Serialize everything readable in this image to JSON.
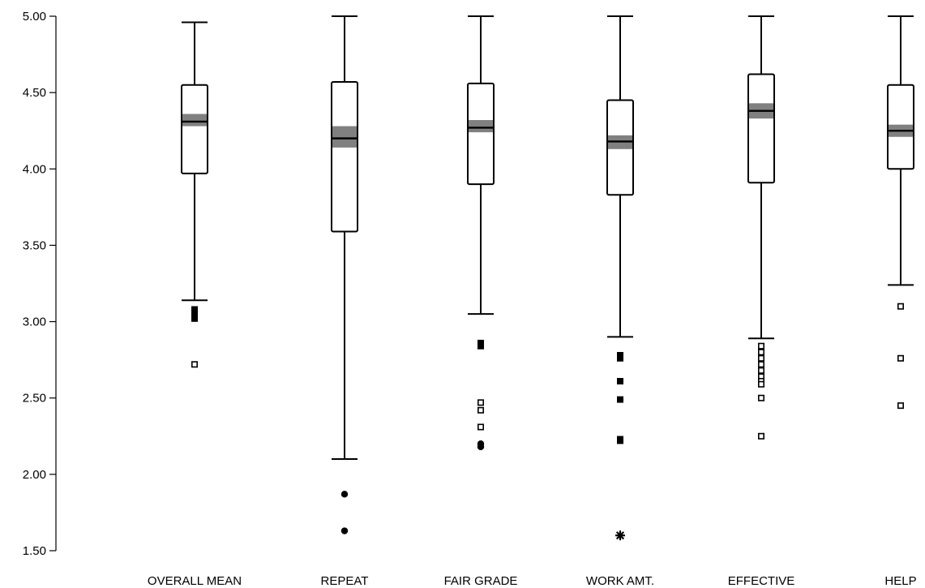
{
  "chart_data": {
    "type": "box",
    "title": "",
    "xlabel": "",
    "ylabel": "",
    "ylim": [
      1.5,
      5.0
    ],
    "yticks": [
      "1.50",
      "2.00",
      "2.50",
      "3.00",
      "3.50",
      "4.00",
      "4.50",
      "5.00"
    ],
    "grid": false,
    "legend": "none",
    "colors": {
      "box_fill": "#ffffff",
      "stroke": "#000000",
      "ci_band": "#808080"
    },
    "categories": [
      "OVERALL MEAN",
      "REPEAT",
      "FAIR GRADE",
      "WORK AMT.",
      "EFFECTIVE",
      "HELP"
    ],
    "boxes": [
      {
        "label": "OVERALL MEAN",
        "whisker_low": 3.14,
        "q1": 3.97,
        "median": 4.31,
        "q3": 4.55,
        "whisker_high": 4.96,
        "ci_low": 4.28,
        "ci_high": 4.36,
        "outliers": [
          {
            "value": 3.08,
            "symbol": "square"
          },
          {
            "value": 3.06,
            "symbol": "square"
          },
          {
            "value": 3.04,
            "symbol": "square"
          },
          {
            "value": 3.02,
            "symbol": "square"
          },
          {
            "value": 2.72,
            "symbol": "open-square"
          }
        ]
      },
      {
        "label": "REPEAT",
        "whisker_low": 2.1,
        "q1": 3.59,
        "median": 4.2,
        "q3": 4.57,
        "whisker_high": 5.0,
        "ci_low": 4.14,
        "ci_high": 4.28,
        "outliers": [
          {
            "value": 1.87,
            "symbol": "dot"
          },
          {
            "value": 1.63,
            "symbol": "dot"
          }
        ]
      },
      {
        "label": "FAIR GRADE",
        "whisker_low": 3.05,
        "q1": 3.9,
        "median": 4.27,
        "q3": 4.56,
        "whisker_high": 5.0,
        "ci_low": 4.24,
        "ci_high": 4.32,
        "outliers": [
          {
            "value": 2.86,
            "symbol": "square"
          },
          {
            "value": 2.84,
            "symbol": "square"
          },
          {
            "value": 2.47,
            "symbol": "open-square"
          },
          {
            "value": 2.42,
            "symbol": "open-square"
          },
          {
            "value": 2.31,
            "symbol": "open-square"
          },
          {
            "value": 2.2,
            "symbol": "dot"
          },
          {
            "value": 2.18,
            "symbol": "dot"
          }
        ]
      },
      {
        "label": "WORK AMT.",
        "whisker_low": 2.9,
        "q1": 3.83,
        "median": 4.18,
        "q3": 4.45,
        "whisker_high": 5.0,
        "ci_low": 4.13,
        "ci_high": 4.22,
        "outliers": [
          {
            "value": 2.78,
            "symbol": "square"
          },
          {
            "value": 2.76,
            "symbol": "square"
          },
          {
            "value": 2.61,
            "symbol": "square"
          },
          {
            "value": 2.49,
            "symbol": "square"
          },
          {
            "value": 2.23,
            "symbol": "square"
          },
          {
            "value": 2.22,
            "symbol": "square"
          },
          {
            "value": 1.6,
            "symbol": "star"
          }
        ]
      },
      {
        "label": "EFFECTIVE",
        "whisker_low": 2.89,
        "q1": 3.91,
        "median": 4.38,
        "q3": 4.62,
        "whisker_high": 5.0,
        "ci_low": 4.33,
        "ci_high": 4.43,
        "outliers": [
          {
            "value": 2.84,
            "symbol": "open-square"
          },
          {
            "value": 2.8,
            "symbol": "open-square"
          },
          {
            "value": 2.76,
            "symbol": "open-square"
          },
          {
            "value": 2.72,
            "symbol": "open-square"
          },
          {
            "value": 2.68,
            "symbol": "open-square"
          },
          {
            "value": 2.64,
            "symbol": "open-square"
          },
          {
            "value": 2.61,
            "symbol": "open-square"
          },
          {
            "value": 2.59,
            "symbol": "open-square"
          },
          {
            "value": 2.5,
            "symbol": "open-square"
          },
          {
            "value": 2.25,
            "symbol": "open-square"
          }
        ]
      },
      {
        "label": "HELP",
        "whisker_low": 3.24,
        "q1": 4.0,
        "median": 4.25,
        "q3": 4.55,
        "whisker_high": 5.0,
        "ci_low": 4.21,
        "ci_high": 4.29,
        "outliers": [
          {
            "value": 3.1,
            "symbol": "open-square"
          },
          {
            "value": 2.76,
            "symbol": "open-square"
          },
          {
            "value": 2.45,
            "symbol": "open-square"
          }
        ]
      }
    ]
  }
}
